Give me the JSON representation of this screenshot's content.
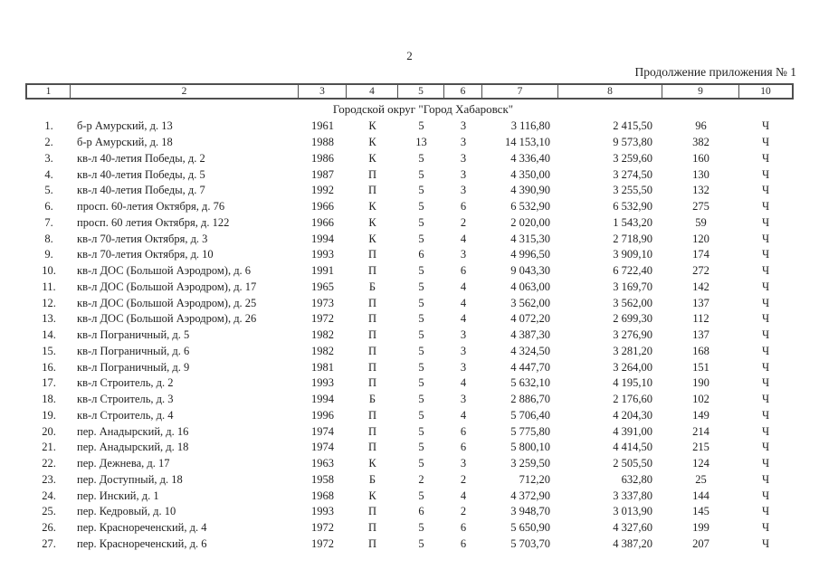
{
  "page": {
    "number": "2",
    "continuation": "Продолжение приложения № 1"
  },
  "table": {
    "column_numbers": [
      "1",
      "2",
      "3",
      "4",
      "5",
      "6",
      "7",
      "8",
      "9",
      "10"
    ],
    "section_title": "Городской округ \"Город Хабаровск\"",
    "rows": [
      {
        "c1": "1.",
        "c2": "б-р Амурский, д. 13",
        "c3": "1961",
        "c4": "К",
        "c5": "5",
        "c6": "3",
        "c7": "3 116,80",
        "c8": "2 415,50",
        "c9": "96",
        "c10": "Ч"
      },
      {
        "c1": "2.",
        "c2": "б-р Амурский, д. 18",
        "c3": "1988",
        "c4": "К",
        "c5": "13",
        "c6": "3",
        "c7": "14 153,10",
        "c8": "9 573,80",
        "c9": "382",
        "c10": "Ч"
      },
      {
        "c1": "3.",
        "c2": "кв-л 40-летия Победы, д. 2",
        "c3": "1986",
        "c4": "К",
        "c5": "5",
        "c6": "3",
        "c7": "4 336,40",
        "c8": "3 259,60",
        "c9": "160",
        "c10": "Ч"
      },
      {
        "c1": "4.",
        "c2": "кв-л 40-летия Победы, д. 5",
        "c3": "1987",
        "c4": "П",
        "c5": "5",
        "c6": "3",
        "c7": "4 350,00",
        "c8": "3 274,50",
        "c9": "130",
        "c10": "Ч"
      },
      {
        "c1": "5.",
        "c2": "кв-л 40-летия Победы, д. 7",
        "c3": "1992",
        "c4": "П",
        "c5": "5",
        "c6": "3",
        "c7": "4 390,90",
        "c8": "3 255,50",
        "c9": "132",
        "c10": "Ч"
      },
      {
        "c1": "6.",
        "c2": "просп. 60-летия Октября, д. 76",
        "c3": "1966",
        "c4": "К",
        "c5": "5",
        "c6": "6",
        "c7": "6 532,90",
        "c8": "6 532,90",
        "c9": "275",
        "c10": "Ч"
      },
      {
        "c1": "7.",
        "c2": "просп. 60 летия Октября, д. 122",
        "c3": "1966",
        "c4": "К",
        "c5": "5",
        "c6": "2",
        "c7": "2 020,00",
        "c8": "1 543,20",
        "c9": "59",
        "c10": "Ч"
      },
      {
        "c1": "8.",
        "c2": "кв-л 70-летия Октября, д. 3",
        "c3": "1994",
        "c4": "К",
        "c5": "5",
        "c6": "4",
        "c7": "4 315,30",
        "c8": "2 718,90",
        "c9": "120",
        "c10": "Ч"
      },
      {
        "c1": "9.",
        "c2": "кв-л 70-летия Октября, д. 10",
        "c3": "1993",
        "c4": "П",
        "c5": "6",
        "c6": "3",
        "c7": "4 996,50",
        "c8": "3 909,10",
        "c9": "174",
        "c10": "Ч"
      },
      {
        "c1": "10.",
        "c2": "кв-л ДОС (Большой Аэродром), д. 6",
        "c3": "1991",
        "c4": "П",
        "c5": "5",
        "c6": "6",
        "c7": "9 043,30",
        "c8": "6 722,40",
        "c9": "272",
        "c10": "Ч"
      },
      {
        "c1": "11.",
        "c2": "кв-л ДОС (Большой Аэродром), д. 17",
        "c3": "1965",
        "c4": "Б",
        "c5": "5",
        "c6": "4",
        "c7": "4 063,00",
        "c8": "3 169,70",
        "c9": "142",
        "c10": "Ч"
      },
      {
        "c1": "12.",
        "c2": "кв-л ДОС (Большой Аэродром), д. 25",
        "c3": "1973",
        "c4": "П",
        "c5": "5",
        "c6": "4",
        "c7": "3 562,00",
        "c8": "3 562,00",
        "c9": "137",
        "c10": "Ч"
      },
      {
        "c1": "13.",
        "c2": "кв-л ДОС (Большой Аэродром), д. 26",
        "c3": "1972",
        "c4": "П",
        "c5": "5",
        "c6": "4",
        "c7": "4 072,20",
        "c8": "2 699,30",
        "c9": "112",
        "c10": "Ч"
      },
      {
        "c1": "14.",
        "c2": "кв-л Пограничный, д. 5",
        "c3": "1982",
        "c4": "П",
        "c5": "5",
        "c6": "3",
        "c7": "4 387,30",
        "c8": "3 276,90",
        "c9": "137",
        "c10": "Ч"
      },
      {
        "c1": "15.",
        "c2": "кв-л Пограничный, д. 6",
        "c3": "1982",
        "c4": "П",
        "c5": "5",
        "c6": "3",
        "c7": "4 324,50",
        "c8": "3 281,20",
        "c9": "168",
        "c10": "Ч"
      },
      {
        "c1": "16.",
        "c2": "кв-л Пограничный, д. 9",
        "c3": "1981",
        "c4": "П",
        "c5": "5",
        "c6": "3",
        "c7": "4 447,70",
        "c8": "3 264,00",
        "c9": "151",
        "c10": "Ч"
      },
      {
        "c1": "17.",
        "c2": "кв-л Строитель, д. 2",
        "c3": "1993",
        "c4": "П",
        "c5": "5",
        "c6": "4",
        "c7": "5 632,10",
        "c8": "4 195,10",
        "c9": "190",
        "c10": "Ч"
      },
      {
        "c1": "18.",
        "c2": "кв-л Строитель, д. 3",
        "c3": "1994",
        "c4": "Б",
        "c5": "5",
        "c6": "3",
        "c7": "2 886,70",
        "c8": "2 176,60",
        "c9": "102",
        "c10": "Ч"
      },
      {
        "c1": "19.",
        "c2": "кв-л Строитель, д. 4",
        "c3": "1996",
        "c4": "П",
        "c5": "5",
        "c6": "4",
        "c7": "5 706,40",
        "c8": "4 204,30",
        "c9": "149",
        "c10": "Ч"
      },
      {
        "c1": "20.",
        "c2": "пер. Анадырский, д. 16",
        "c3": "1974",
        "c4": "П",
        "c5": "5",
        "c6": "6",
        "c7": "5 775,80",
        "c8": "4 391,00",
        "c9": "214",
        "c10": "Ч"
      },
      {
        "c1": "21.",
        "c2": "пер. Анадырский, д. 18",
        "c3": "1974",
        "c4": "П",
        "c5": "5",
        "c6": "6",
        "c7": "5 800,10",
        "c8": "4 414,50",
        "c9": "215",
        "c10": "Ч"
      },
      {
        "c1": "22.",
        "c2": "пер. Дежнева, д. 17",
        "c3": "1963",
        "c4": "К",
        "c5": "5",
        "c6": "3",
        "c7": "3 259,50",
        "c8": "2 505,50",
        "c9": "124",
        "c10": "Ч"
      },
      {
        "c1": "23.",
        "c2": "пер. Доступный, д. 18",
        "c3": "1958",
        "c4": "Б",
        "c5": "2",
        "c6": "2",
        "c7": "712,20",
        "c8": "632,80",
        "c9": "25",
        "c10": "Ч"
      },
      {
        "c1": "24.",
        "c2": "пер. Инский, д. 1",
        "c3": "1968",
        "c4": "К",
        "c5": "5",
        "c6": "4",
        "c7": "4 372,90",
        "c8": "3 337,80",
        "c9": "144",
        "c10": "Ч"
      },
      {
        "c1": "25.",
        "c2": "пер. Кедровый, д. 10",
        "c3": "1993",
        "c4": "П",
        "c5": "6",
        "c6": "2",
        "c7": "3 948,70",
        "c8": "3 013,90",
        "c9": "145",
        "c10": "Ч"
      },
      {
        "c1": "26.",
        "c2": "пер. Краснореченский, д. 4",
        "c3": "1972",
        "c4": "П",
        "c5": "5",
        "c6": "6",
        "c7": "5 650,90",
        "c8": "4 327,60",
        "c9": "199",
        "c10": "Ч"
      },
      {
        "c1": "27.",
        "c2": "пер. Краснореченский, д. 6",
        "c3": "1972",
        "c4": "П",
        "c5": "5",
        "c6": "6",
        "c7": "5 703,70",
        "c8": "4 387,20",
        "c9": "207",
        "c10": "Ч"
      }
    ]
  }
}
